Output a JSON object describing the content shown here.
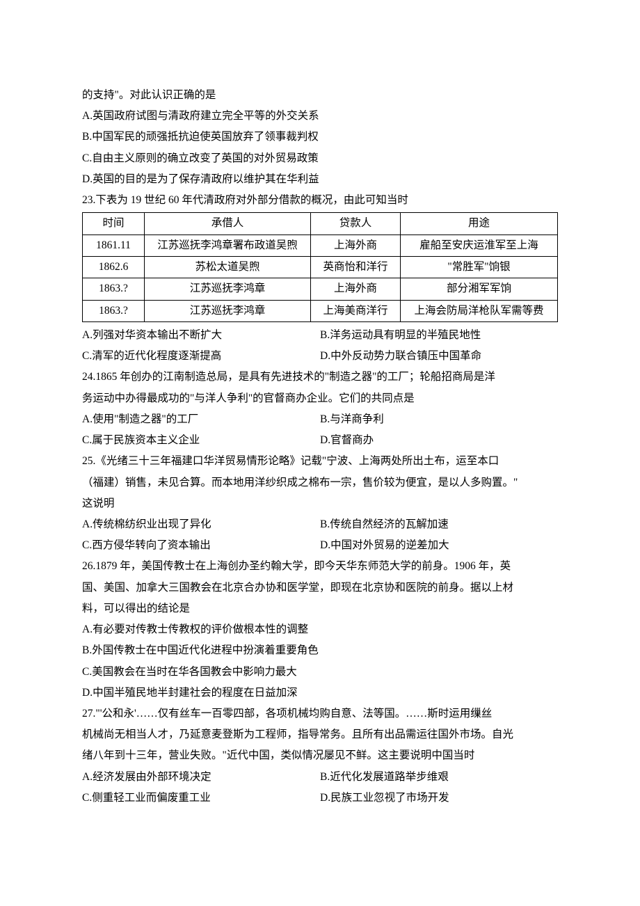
{
  "q22": {
    "stem_tail": "的支持\"。对此认识正确的是",
    "A": "A.英国政府试图与清政府建立完全平等的外交关系",
    "B": "B.中国军民的顽强抵抗迫使英国放弃了领事裁判权",
    "C": "C.自由主义原则的确立改变了英国的对外贸易政策",
    "D": "D.英国的目的是为了保存清政府以维护其在华利益"
  },
  "q23": {
    "stem": "23.下表为 19 世纪 60 年代清政府对外部分借款的概况，由此可知当时",
    "table": {
      "headers": [
        "时间",
        "承借人",
        "贷款人",
        "用途"
      ],
      "rows": [
        [
          "1861.11",
          "江苏巡抚李鸿章署布政道吴煦",
          "上海外商",
          "雇船至安庆运淮军至上海"
        ],
        [
          "1862.6",
          "苏松太道吴煦",
          "英商怡和洋行",
          "\"常胜军\"饷银"
        ],
        [
          "1863.?",
          "江苏巡抚李鸿章",
          "上海外商",
          "部分湘军军饷"
        ],
        [
          "1863.?",
          "江苏巡抚李鸿章",
          "上海美商洋行",
          "上海会防局洋枪队军需等费"
        ]
      ]
    },
    "A": "A.列强对华资本输出不断扩大",
    "B": "B.洋务运动具有明显的半殖民地性",
    "C": "C.清军的近代化程度逐渐提高",
    "D": "D.中外反动势力联合镇压中国革命"
  },
  "q24": {
    "stem1": "24.1865 年创办的江南制造总局，是具有先进技术的\"制造之器\"的工厂；轮船招商局是洋",
    "stem2": "务运动中办得最成功的\"与洋人争利\"的官督商办企业。它们的共同点是",
    "A": "A.使用\"制造之器\"的工厂",
    "B": "B.与洋商争利",
    "C": "C.属于民族资本主义企业",
    "D": "D.官督商办"
  },
  "q25": {
    "stem1": "25.《光绪三十三年福建口华洋贸易情形论略》记载\"宁波、上海两处所出土布，运至本口",
    "stem2": "（福建）销售，未见合算。而本地用洋纱织成之棉布一宗，售价较为便宜，是以人多购置。\"",
    "stem3": "这说明",
    "A": "A.传统棉纺织业出现了异化",
    "B": "B.传统自然经济的瓦解加速",
    "C": "C.西方侵华转向了资本输出",
    "D": "D.中国对外贸易的逆差加大"
  },
  "q26": {
    "stem1": "26.1879 年，美国传教士在上海创办圣约翰大学，即今天华东师范大学的前身。1906 年，英",
    "stem2": "国、美国、加拿大三国教会在北京合办协和医学堂，即现在北京协和医院的前身。据以上材",
    "stem3": "料，可以得出的结论是",
    "A": "A.有必要对传教士传教权的评价做根本性的调整",
    "B": "B.外国传教士在中国近代化进程中扮演着重要角色",
    "C": "C.美国教会在当时在华各国教会中影响力最大",
    "D": "D.中国半殖民地半封建社会的程度在日益加深"
  },
  "q27": {
    "stem1": "27.\"'公和永'……仅有丝车一百零四部，各项机械均购自意、法等国。……斯时运用缫丝",
    "stem2": "机械尚无相当人才，乃延意麦登斯为工程师，指导常务。且所有出品需运往国外市场。自光",
    "stem3": "绪八年到十三年，营业失败。\"近代中国，类似情况屡见不鲜。这主要说明中国当时",
    "A": "A.经济发展由外部环境决定",
    "B": "B.近代化发展道路举步维艰",
    "C": "C.侧重轻工业而偏废重工业",
    "D": "D.民族工业忽视了市场开发"
  }
}
